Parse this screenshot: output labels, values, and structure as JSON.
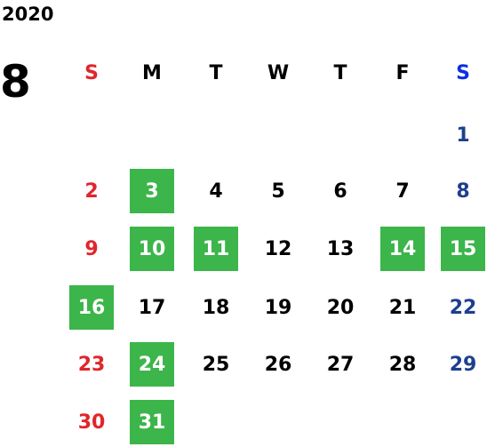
{
  "year": "2020",
  "month": "8",
  "weekdays": [
    "S",
    "M",
    "T",
    "W",
    "T",
    "F",
    "S"
  ],
  "weeks": [
    [
      null,
      null,
      null,
      null,
      null,
      null,
      {
        "day": 1,
        "marked": false
      }
    ],
    [
      {
        "day": 2,
        "marked": false
      },
      {
        "day": 3,
        "marked": true
      },
      {
        "day": 4,
        "marked": false
      },
      {
        "day": 5,
        "marked": false
      },
      {
        "day": 6,
        "marked": false
      },
      {
        "day": 7,
        "marked": false
      },
      {
        "day": 8,
        "marked": false
      }
    ],
    [
      {
        "day": 9,
        "marked": false
      },
      {
        "day": 10,
        "marked": true
      },
      {
        "day": 11,
        "marked": true
      },
      {
        "day": 12,
        "marked": false
      },
      {
        "day": 13,
        "marked": false
      },
      {
        "day": 14,
        "marked": true
      },
      {
        "day": 15,
        "marked": true
      }
    ],
    [
      {
        "day": 16,
        "marked": true
      },
      {
        "day": 17,
        "marked": false
      },
      {
        "day": 18,
        "marked": false
      },
      {
        "day": 19,
        "marked": false
      },
      {
        "day": 20,
        "marked": false
      },
      {
        "day": 21,
        "marked": false
      },
      {
        "day": 22,
        "marked": false
      }
    ],
    [
      {
        "day": 23,
        "marked": false
      },
      {
        "day": 24,
        "marked": true
      },
      {
        "day": 25,
        "marked": false
      },
      {
        "day": 26,
        "marked": false
      },
      {
        "day": 27,
        "marked": false
      },
      {
        "day": 28,
        "marked": false
      },
      {
        "day": 29,
        "marked": false
      }
    ],
    [
      {
        "day": 30,
        "marked": false
      },
      {
        "day": 31,
        "marked": true
      },
      null,
      null,
      null,
      null,
      null
    ]
  ]
}
